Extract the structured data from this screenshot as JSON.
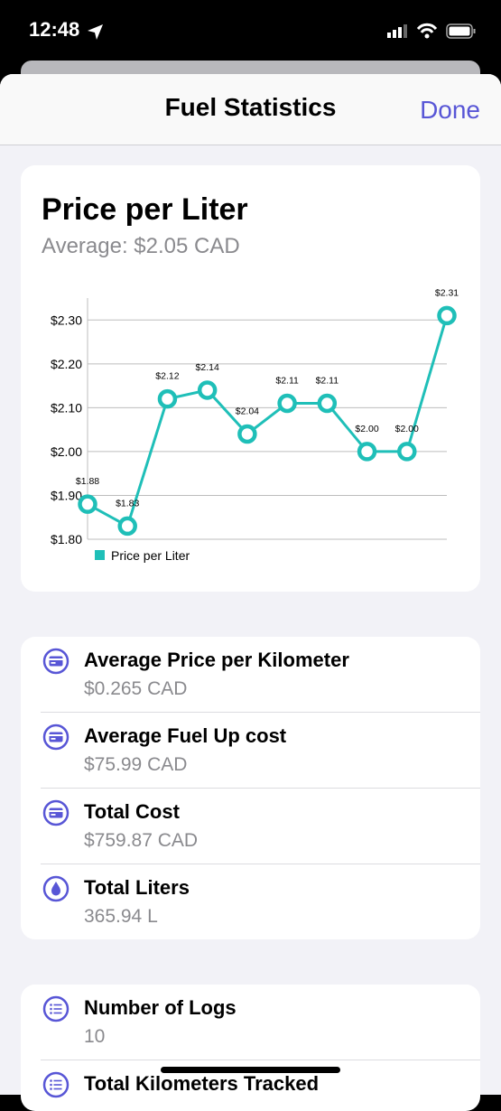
{
  "status_bar": {
    "time": "12:48"
  },
  "nav": {
    "title": "Fuel Statistics",
    "done": "Done"
  },
  "chart_card": {
    "title": "Price per Liter",
    "subtitle": "Average: $2.05 CAD"
  },
  "chart_data": {
    "type": "line",
    "series": [
      {
        "name": "Price per Liter",
        "color": "#1fbfb8",
        "values": [
          1.88,
          1.83,
          2.12,
          2.14,
          2.04,
          2.11,
          2.11,
          2.0,
          2.0,
          2.31
        ],
        "value_labels": [
          "$1.88",
          "$1.83",
          "$2.12",
          "$2.14",
          "$2.04",
          "$2.11",
          "$2.11",
          "$2.00",
          "$2.00",
          "$2.31"
        ]
      }
    ],
    "ylim": [
      1.8,
      2.35
    ],
    "yticks": [
      {
        "value": 1.8,
        "label": "$1.80"
      },
      {
        "value": 1.9,
        "label": "$1.90"
      },
      {
        "value": 2.0,
        "label": "$2.00"
      },
      {
        "value": 2.1,
        "label": "$2.10"
      },
      {
        "value": 2.2,
        "label": "$2.20"
      },
      {
        "value": 2.3,
        "label": "$2.30"
      }
    ],
    "grid": true,
    "legend": "bottom-left"
  },
  "stats": [
    {
      "label": "Average Price per Kilometer",
      "value": "$0.265 CAD"
    },
    {
      "label": "Average Fuel Up cost",
      "value": "$75.99 CAD"
    },
    {
      "label": "Total Cost",
      "value": "$759.87 CAD"
    },
    {
      "label": "Total Liters",
      "value": "365.94 L"
    }
  ],
  "stats2": [
    {
      "label": "Number of Logs",
      "value": "10"
    },
    {
      "label": "Total Kilometers Tracked"
    }
  ]
}
